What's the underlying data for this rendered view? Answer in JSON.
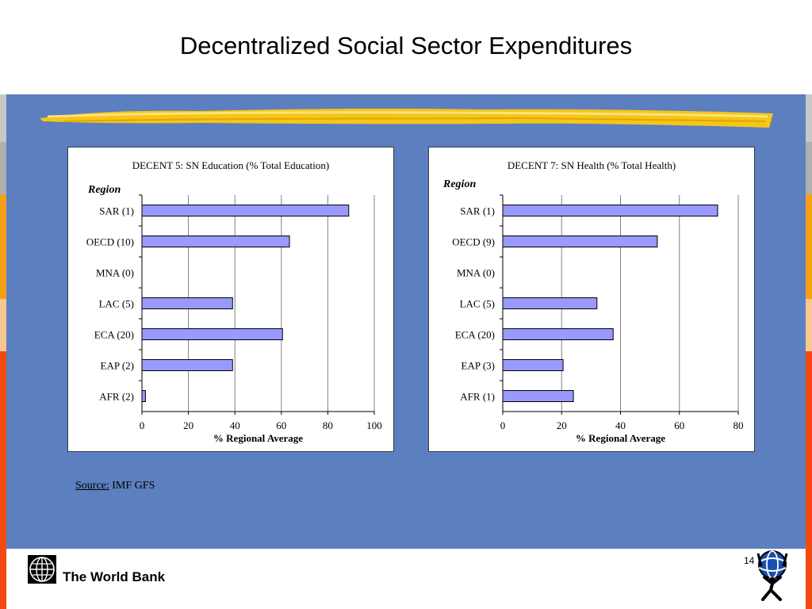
{
  "slide": {
    "title": "Decentralized Social Sector Expenditures",
    "page_number": "14",
    "source_label": "Source:",
    "source_text": "IMF GFS",
    "footer_name": "The World Bank"
  },
  "colors": {
    "panel_blue": "#5b7fbf",
    "bar_fill": "#9999ff",
    "bar_stroke": "#000000",
    "brush_yellow": "#f5c518"
  },
  "icons": [
    "world-bank-globe-icon",
    "atlas-globe-icon"
  ],
  "chart_data": [
    {
      "type": "bar",
      "orientation": "horizontal",
      "title": "DECENT 5: SN Education (% Total Education)",
      "ylabel": "Region",
      "xlabel": "% Regional Average",
      "categories": [
        "SAR (1)",
        "OECD (10)",
        "MNA (0)",
        "LAC (5)",
        "ECA (20)",
        "EAP (2)",
        "AFR (2)"
      ],
      "values": [
        89,
        63.5,
        0,
        39,
        60.5,
        39,
        1.5
      ],
      "xlim": [
        0,
        100
      ],
      "xticks": [
        "0",
        "20",
        "40",
        "60",
        "80",
        "100"
      ],
      "grid": true
    },
    {
      "type": "bar",
      "orientation": "horizontal",
      "title": "DECENT 7: SN Health (% Total Health)",
      "ylabel": "Region",
      "xlabel": "% Regional Average",
      "categories": [
        "SAR (1)",
        "OECD (9)",
        "MNA (0)",
        "LAC (5)",
        "ECA (20)",
        "EAP (3)",
        "AFR (1)"
      ],
      "values": [
        73,
        52.5,
        0,
        32,
        37.5,
        20.5,
        24
      ],
      "xlim": [
        0,
        80
      ],
      "xticks": [
        "0",
        "20",
        "40",
        "60",
        "80"
      ],
      "grid": true
    }
  ]
}
